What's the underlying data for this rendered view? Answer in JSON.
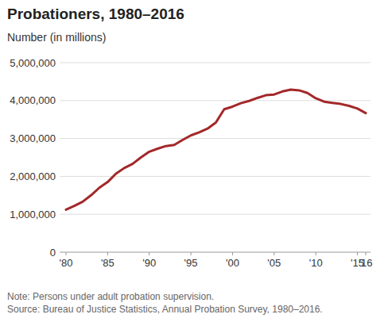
{
  "chart_data": {
    "type": "line",
    "title": "Probationers, 1980–2016",
    "subtitle": "Number (in millions)",
    "note": "Note: Persons under adult probation supervision.",
    "source": "Source: Bureau of Justice Statistics, Annual Probation Survey, 1980–2016.",
    "x": [
      1980,
      1981,
      1982,
      1983,
      1984,
      1985,
      1986,
      1987,
      1988,
      1989,
      1990,
      1991,
      1992,
      1993,
      1994,
      1995,
      1996,
      1997,
      1998,
      1999,
      2000,
      2001,
      2002,
      2003,
      2004,
      2005,
      2006,
      2007,
      2008,
      2009,
      2010,
      2011,
      2012,
      2013,
      2014,
      2015,
      2016
    ],
    "values": [
      1120000,
      1220000,
      1330000,
      1500000,
      1700000,
      1850000,
      2070000,
      2220000,
      2330000,
      2500000,
      2650000,
      2730000,
      2800000,
      2830000,
      2960000,
      3080000,
      3160000,
      3260000,
      3420000,
      3770000,
      3840000,
      3930000,
      3990000,
      4070000,
      4140000,
      4160000,
      4240000,
      4290000,
      4270000,
      4200000,
      4060000,
      3970000,
      3940000,
      3910000,
      3860000,
      3790000,
      3670000
    ],
    "color": "#a3282a",
    "xlim": [
      1980,
      2016
    ],
    "xticks": [
      {
        "value": 1980,
        "label": "'80"
      },
      {
        "value": 1985,
        "label": "'85"
      },
      {
        "value": 1990,
        "label": "'90"
      },
      {
        "value": 1995,
        "label": "'95"
      },
      {
        "value": 2000,
        "label": "'00"
      },
      {
        "value": 2005,
        "label": "'05"
      },
      {
        "value": 2010,
        "label": "'10"
      },
      {
        "value": 2015,
        "label": "'15"
      },
      {
        "value": 2016,
        "label": "'16"
      }
    ],
    "ylim": [
      0,
      5000000
    ],
    "yticks": [
      0,
      {
        "value": 1000000,
        "label": "1,000,000"
      },
      {
        "value": 2000000,
        "label": "2,000,000"
      },
      {
        "value": 3000000,
        "label": "3,000,000"
      },
      {
        "value": 4000000,
        "label": "4,000,000"
      },
      {
        "value": 5000000,
        "label": "5,000,000"
      }
    ],
    "grid": true
  }
}
